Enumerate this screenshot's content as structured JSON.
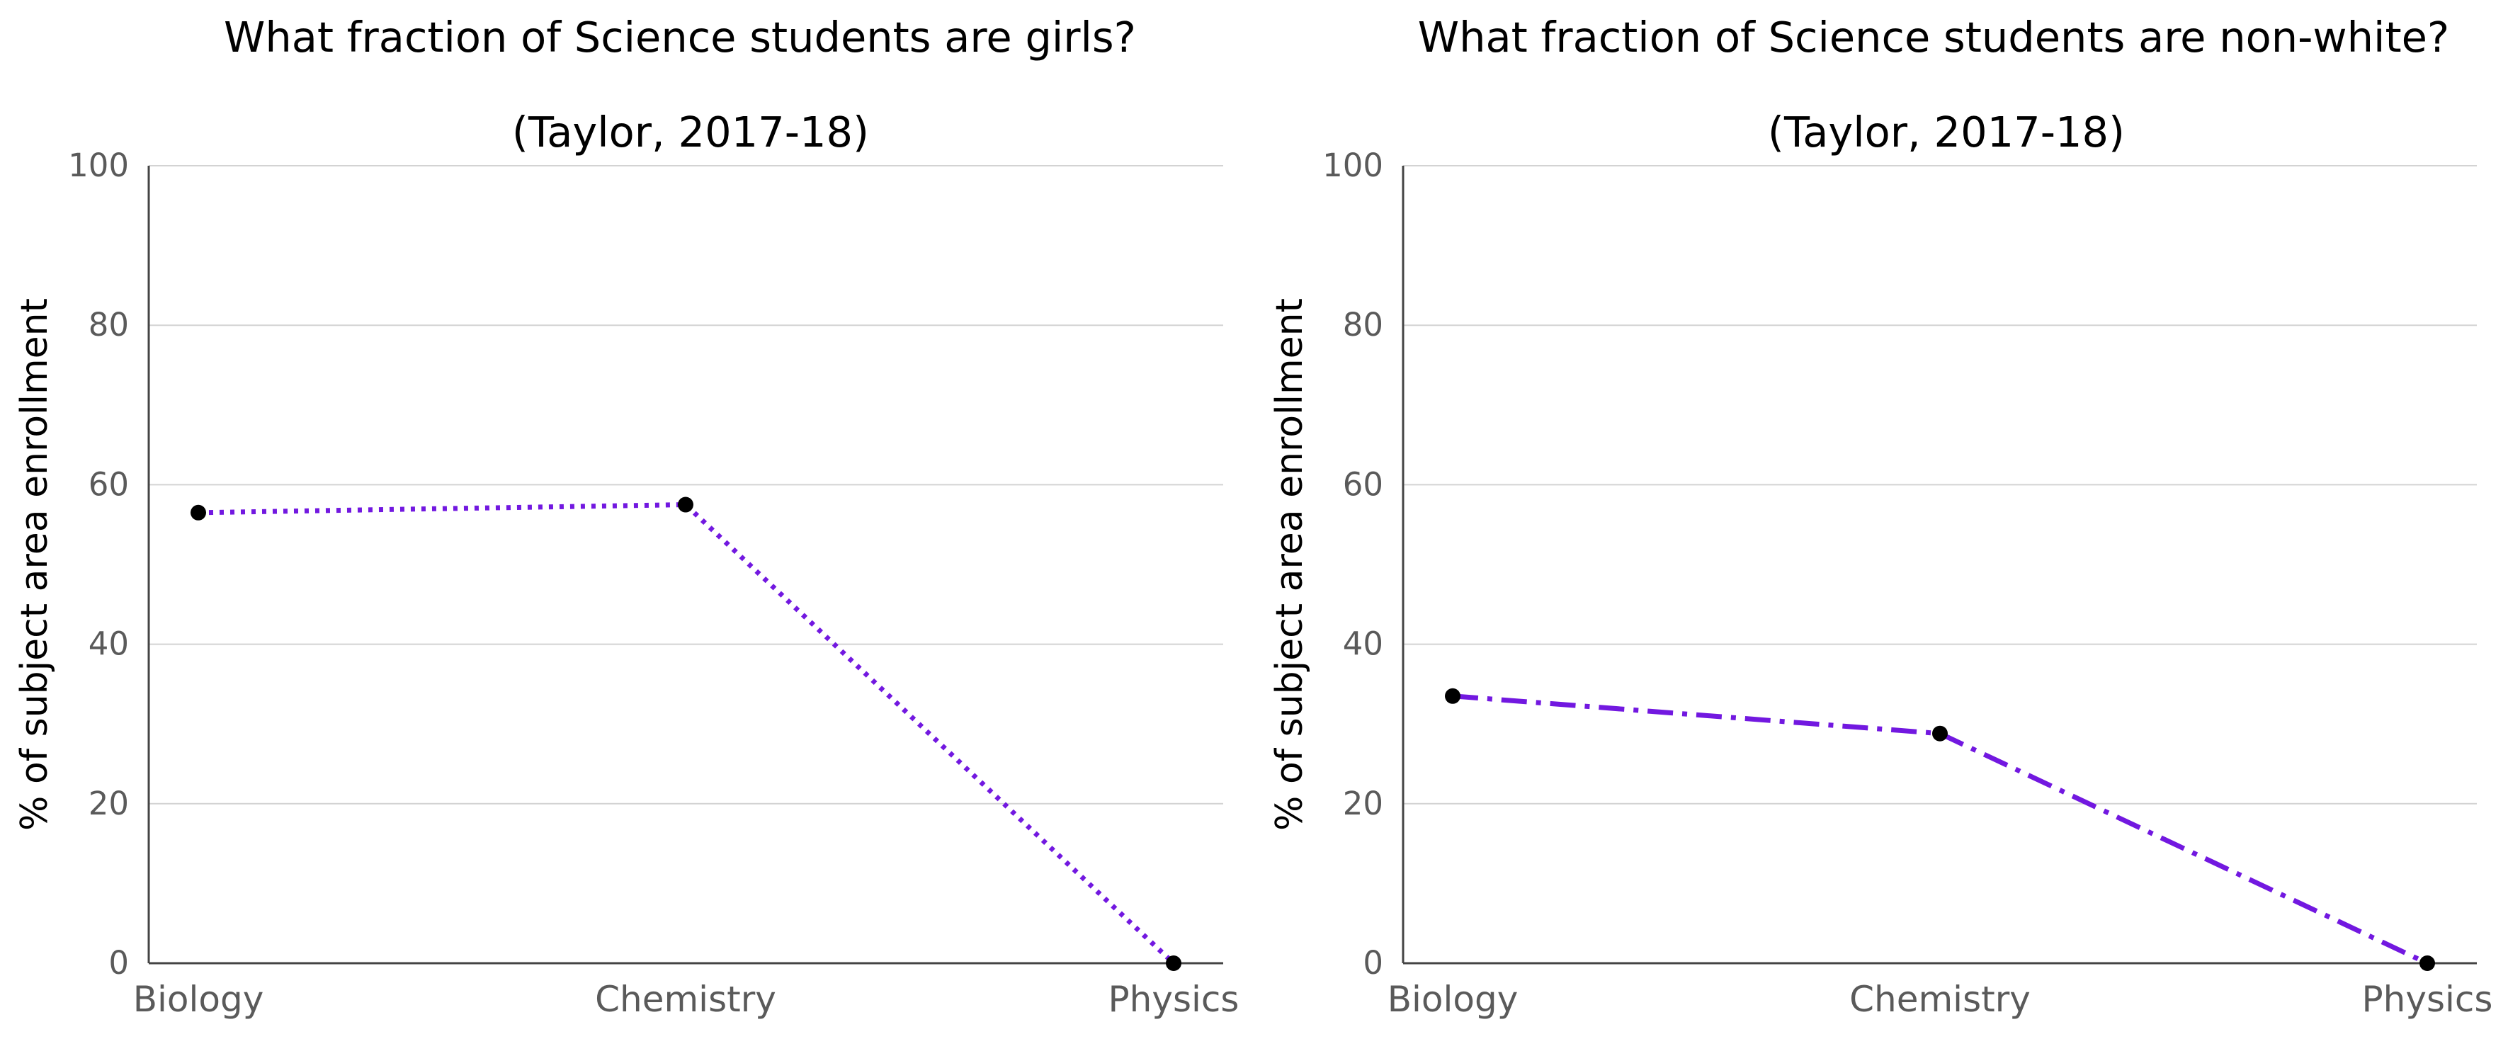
{
  "colors": {
    "series": "#7218e0",
    "marker": "#000000",
    "grid": "#d3d3d3",
    "axis": "#444444",
    "tick_text": "#5a5a5a"
  },
  "chart_data": [
    {
      "type": "line",
      "title": "What fraction of Science students are girls?",
      "subtitle": "(Taylor, 2017-18)",
      "xlabel": "",
      "ylabel": "% of subject area enrollment",
      "categories": [
        "Biology",
        "Chemistry",
        "Physics"
      ],
      "values": [
        56.5,
        57.5,
        0
      ],
      "line_style": "dotted",
      "ylim": [
        0,
        100
      ],
      "yticks": [
        "0",
        "20",
        "40",
        "60",
        "80",
        "100"
      ],
      "grid": "horizontal",
      "legend": "none"
    },
    {
      "type": "line",
      "title": "What fraction of Science students are non-white?",
      "subtitle": "(Taylor, 2017-18)",
      "xlabel": "",
      "ylabel": "% of subject area enrollment",
      "categories": [
        "Biology",
        "Chemistry",
        "Physics"
      ],
      "values": [
        33.5,
        28.8,
        0
      ],
      "line_style": "dash-dot",
      "ylim": [
        0,
        100
      ],
      "yticks": [
        "0",
        "20",
        "40",
        "60",
        "80",
        "100"
      ],
      "grid": "horizontal",
      "legend": "none"
    }
  ]
}
